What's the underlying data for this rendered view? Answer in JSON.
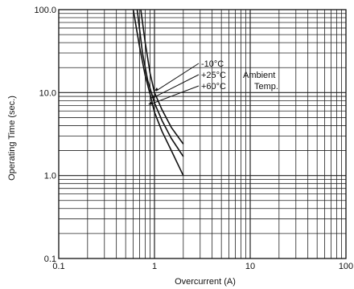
{
  "chart_data": {
    "type": "line",
    "xlabel": "Overcurrent (A)",
    "ylabel": "Operating Time (sec.)",
    "xscale": "log",
    "yscale": "log",
    "xlim": [
      0.1,
      100
    ],
    "ylim": [
      0.1,
      100
    ],
    "grid": true,
    "x_tick_labels": [
      "0.1",
      "1",
      "10",
      "100"
    ],
    "y_tick_labels": [
      "0.1",
      "1.0",
      "10.0",
      "100.0"
    ],
    "series": [
      {
        "name": "-10°C",
        "x": [
          0.72,
          0.8,
          0.9,
          1.0,
          1.2,
          1.5,
          2.0
        ],
        "y": [
          100,
          40,
          17,
          10,
          6.2,
          3.8,
          2.4
        ]
      },
      {
        "name": "+25°C",
        "x": [
          0.66,
          0.75,
          0.85,
          1.0,
          1.2,
          1.5,
          2.0
        ],
        "y": [
          100,
          30,
          14,
          7.5,
          4.6,
          2.8,
          1.7
        ]
      },
      {
        "name": "+60°C",
        "x": [
          0.6,
          0.7,
          0.8,
          0.9,
          1.0,
          1.2,
          1.5,
          2.0
        ],
        "y": [
          100,
          35,
          16,
          9.5,
          5.8,
          3.4,
          2.0,
          1.0
        ]
      }
    ],
    "annotations": {
      "ambient": "Ambient",
      "temp": "Temp."
    }
  },
  "colors": {
    "curve": "#111111",
    "grid": "#222222",
    "frame": "#111111"
  }
}
